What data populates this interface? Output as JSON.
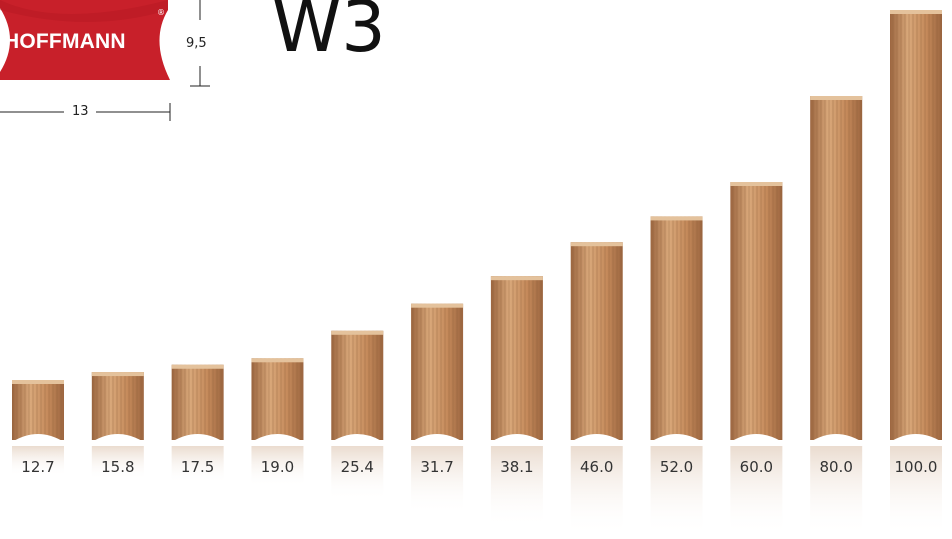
{
  "brand": {
    "name": "HOFFMANN",
    "registered_mark": "®",
    "logo_color": "#c8202a"
  },
  "title": "W3",
  "dimensions": {
    "height_label": "9,5",
    "width_label": "13"
  },
  "dowels": [
    {
      "label": "12.7",
      "length": 12.7
    },
    {
      "label": "15.8",
      "length": 15.8
    },
    {
      "label": "17.5",
      "length": 17.5
    },
    {
      "label": "19.0",
      "length": 19.0
    },
    {
      "label": "25.4",
      "length": 25.4
    },
    {
      "label": "31.7",
      "length": 31.7
    },
    {
      "label": "38.1",
      "length": 38.1
    },
    {
      "label": "46.0",
      "length": 46.0
    },
    {
      "label": "52.0",
      "length": 52.0
    },
    {
      "label": "60.0",
      "length": 60.0
    },
    {
      "label": "80.0",
      "length": 80.0
    },
    {
      "label": "100.0",
      "length": 100.0
    }
  ],
  "colors": {
    "wood_light": "#d9a87a",
    "wood_mid": "#c4895a",
    "wood_dark": "#9c6640"
  }
}
